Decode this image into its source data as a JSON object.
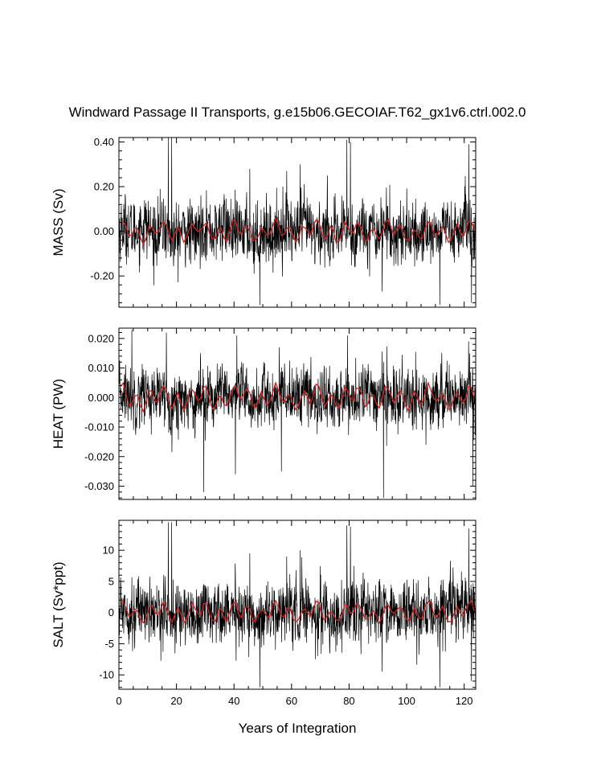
{
  "title": "Windward Passage II Transports, g.e15b06.GECOIAF.T62_gx1v6.ctrl.002.0",
  "colors": {
    "raw_series": "#000000",
    "smoothed_series": "#d42020",
    "axes": "#000000"
  },
  "chart_data": [
    {
      "type": "line",
      "ylabel": "MASS (Sv)",
      "xlabel": "",
      "xlim": [
        0,
        124
      ],
      "ylim": [
        -0.34,
        0.42
      ],
      "xticks": [
        0,
        20,
        40,
        60,
        80,
        100,
        120
      ],
      "yticks": [
        -0.2,
        0.0,
        0.2,
        0.4
      ],
      "ytick_labels": [
        "-0.20",
        "0.00",
        "0.20",
        "0.40"
      ],
      "grid": false,
      "series": [
        {
          "role": "monthly",
          "color": "#000000",
          "x_start": 0,
          "x_step": 0.0833,
          "count": 1488,
          "baseline": 0.0,
          "noise_sd": 0.07,
          "spikes": [
            [
              17.2,
              0.42
            ],
            [
              18.3,
              0.42
            ],
            [
              79.2,
              0.41
            ],
            [
              80.5,
              0.4
            ],
            [
              121.6,
              0.39
            ],
            [
              45.5,
              0.28
            ],
            [
              58.3,
              0.27
            ],
            [
              63.0,
              0.3
            ],
            [
              72.5,
              0.25
            ],
            [
              49.0,
              -0.33
            ],
            [
              111.5,
              -0.33
            ],
            [
              122.5,
              -0.32
            ],
            [
              91.5,
              -0.27
            ]
          ]
        },
        {
          "role": "annual-mean",
          "color": "#d42020",
          "x_start": 0.5,
          "x_step": 1,
          "count": 124,
          "baseline": 0.0,
          "amplitude": 0.04
        }
      ]
    },
    {
      "type": "line",
      "ylabel": "HEAT (PW)",
      "xlabel": "",
      "xlim": [
        0,
        124
      ],
      "ylim": [
        -0.0345,
        0.0235
      ],
      "xticks": [
        0,
        20,
        40,
        60,
        80,
        100,
        120
      ],
      "yticks": [
        -0.03,
        -0.02,
        -0.01,
        0.0,
        0.01,
        0.02
      ],
      "ytick_labels": [
        "-0.030",
        "-0.020",
        "-0.010",
        "0.000",
        "0.010",
        "0.020"
      ],
      "grid": false,
      "series": [
        {
          "role": "monthly",
          "color": "#000000",
          "x_start": 0,
          "x_step": 0.0833,
          "count": 1488,
          "baseline": 0.0,
          "noise_sd": 0.005,
          "spikes": [
            [
              4.5,
              0.023
            ],
            [
              16.5,
              0.022
            ],
            [
              41.0,
              0.021
            ],
            [
              79.5,
              0.021
            ],
            [
              121.5,
              0.019
            ],
            [
              29.5,
              -0.032
            ],
            [
              92.0,
              -0.034
            ],
            [
              123.0,
              -0.03
            ],
            [
              40.5,
              -0.026
            ],
            [
              56.5,
              -0.025
            ]
          ]
        },
        {
          "role": "annual-mean",
          "color": "#d42020",
          "x_start": 0.5,
          "x_step": 1,
          "count": 124,
          "baseline": 0.0,
          "amplitude": 0.0035
        }
      ]
    },
    {
      "type": "line",
      "ylabel": "SALT (Sv*ppt)",
      "xlabel": "Years of Integration",
      "xlim": [
        0,
        124
      ],
      "ylim": [
        -12.3,
        14.8
      ],
      "xticks": [
        0,
        20,
        40,
        60,
        80,
        100,
        120
      ],
      "yticks": [
        -10,
        -5,
        0,
        5,
        10
      ],
      "ytick_labels": [
        "-10",
        "-5",
        "0",
        "5",
        "10"
      ],
      "grid": false,
      "series": [
        {
          "role": "monthly",
          "color": "#000000",
          "x_start": 0,
          "x_step": 0.0833,
          "count": 1488,
          "baseline": 0.0,
          "noise_sd": 2.5,
          "spikes": [
            [
              17.2,
              14.5
            ],
            [
              18.3,
              14.5
            ],
            [
              79.2,
              14.0
            ],
            [
              80.5,
              13.8
            ],
            [
              121.6,
              13.5
            ],
            [
              45.5,
              9.5
            ],
            [
              58.3,
              9.0
            ],
            [
              63.0,
              10.0
            ],
            [
              49.0,
              -12.0
            ],
            [
              111.5,
              -12.0
            ],
            [
              122.5,
              -11.0
            ],
            [
              91.5,
              -9.5
            ]
          ]
        },
        {
          "role": "annual-mean",
          "color": "#d42020",
          "x_start": 0.5,
          "x_step": 1,
          "count": 124,
          "baseline": 0.0,
          "amplitude": 1.4
        }
      ]
    }
  ]
}
